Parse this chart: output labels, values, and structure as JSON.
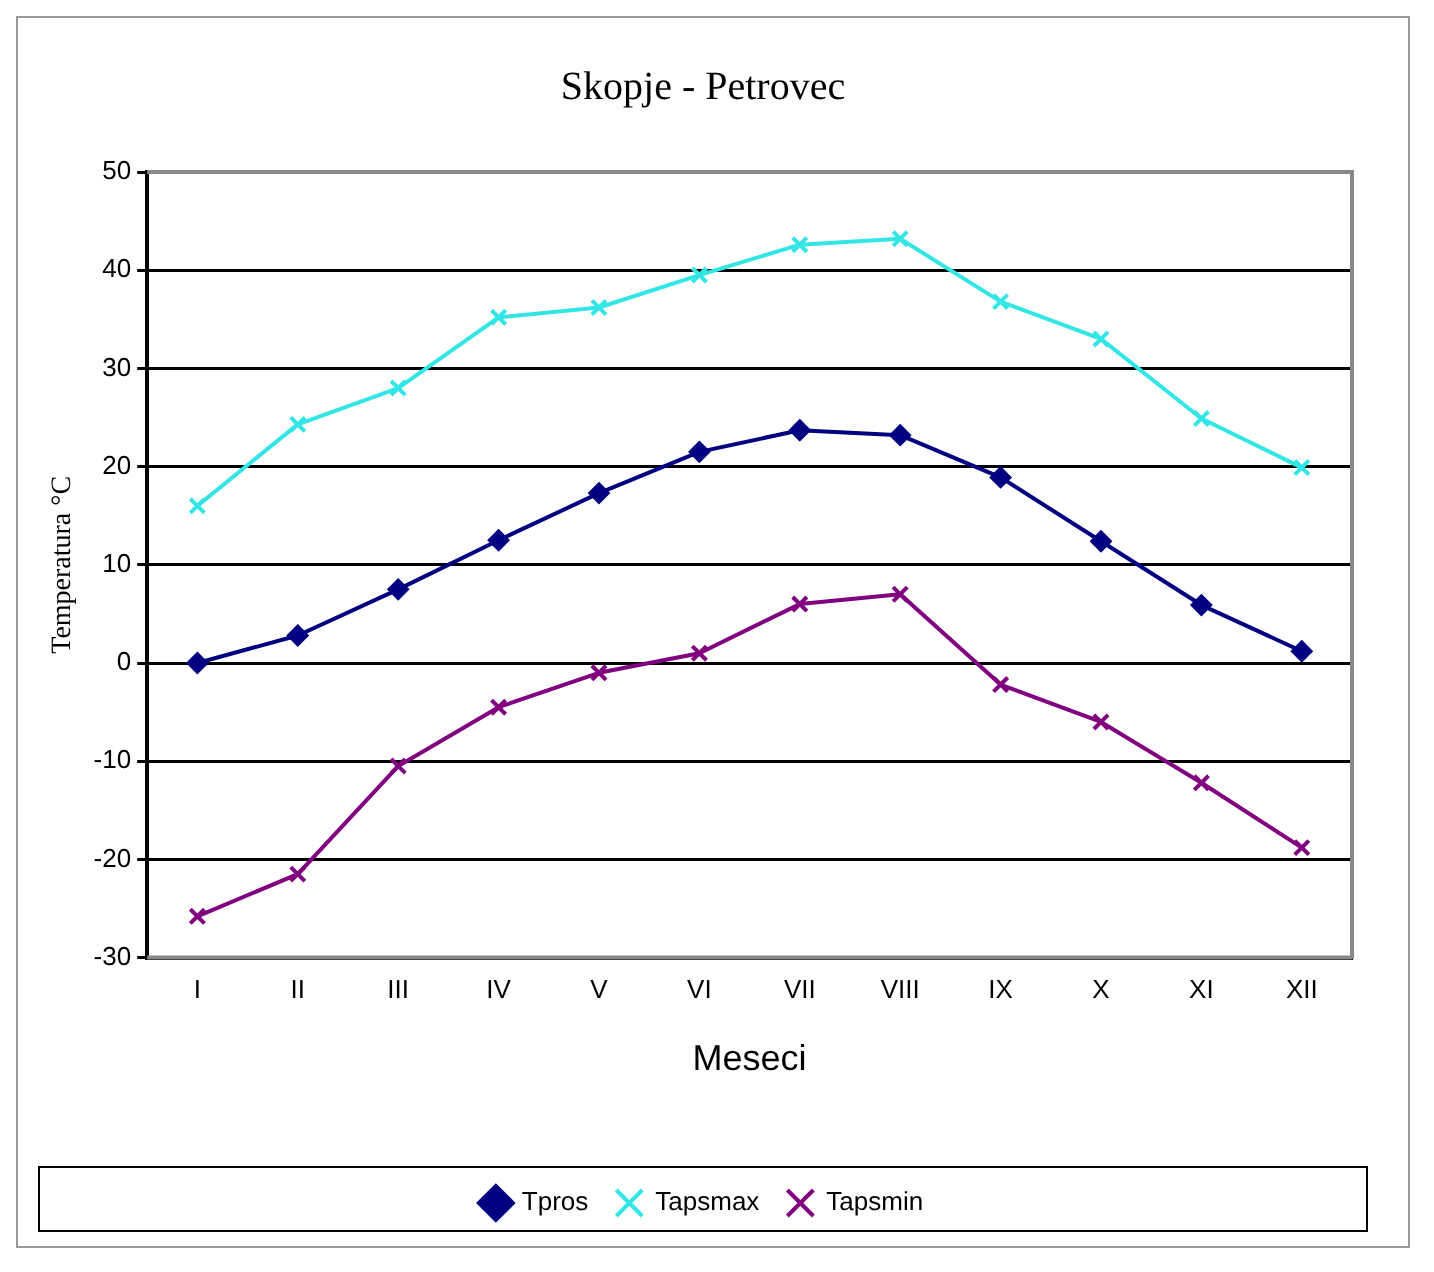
{
  "chart_data": {
    "type": "line",
    "title": "Skopje - Petrovec",
    "xlabel": "Meseci",
    "ylabel": "Temperatura °C",
    "categories": [
      "I",
      "II",
      "III",
      "IV",
      "V",
      "VI",
      "VII",
      "VIII",
      "IX",
      "X",
      "XI",
      "XII"
    ],
    "series": [
      {
        "name": "Tpros",
        "color": "#000080",
        "marker": "diamond",
        "values": [
          0,
          2.8,
          7.5,
          12.5,
          17.3,
          21.5,
          23.7,
          23.2,
          18.9,
          12.4,
          5.9,
          1.2
        ]
      },
      {
        "name": "Tapsmax",
        "color": "#33e6e6",
        "marker": "cross",
        "values": [
          16,
          24.3,
          28,
          35.2,
          36.2,
          39.5,
          42.6,
          43.2,
          36.8,
          33,
          24.9,
          19.9
        ]
      },
      {
        "name": "Tapsmin",
        "color": "#800080",
        "marker": "cross",
        "values": [
          -25.8,
          -21.5,
          -10.5,
          -4.5,
          -1,
          1,
          6,
          7,
          -2.2,
          -6,
          -12.2,
          -18.8
        ]
      }
    ],
    "ylim": [
      -30,
      50
    ],
    "yticks": [
      -30,
      -20,
      -10,
      0,
      10,
      20,
      30,
      40,
      50
    ],
    "grid": "y",
    "legend": "bottom"
  }
}
